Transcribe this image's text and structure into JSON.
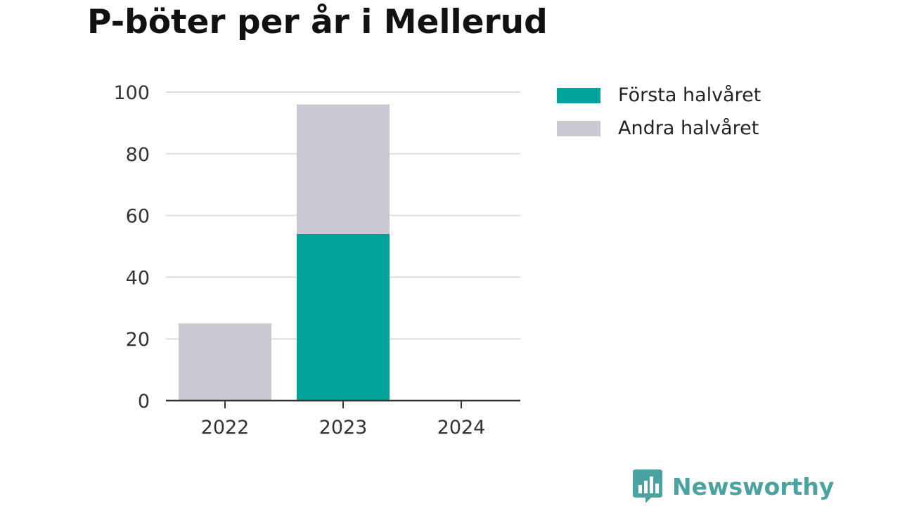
{
  "title": "P-böter per år i Mellerud",
  "legend": [
    {
      "label": "Första halvåret",
      "color": "#00a39a"
    },
    {
      "label": "Andra halvåret",
      "color": "#c8c7d2"
    }
  ],
  "logo": {
    "text": "Newsworthy",
    "icon": "newsworthy-logo-icon",
    "color": "#4aa3a0"
  },
  "chart_data": {
    "type": "bar",
    "stacked": true,
    "categories": [
      "2022",
      "2023",
      "2024"
    ],
    "series": [
      {
        "name": "Första halvåret",
        "color": "#00a39a",
        "values": [
          0,
          54,
          0
        ]
      },
      {
        "name": "Andra halvåret",
        "color": "#c8c7d2",
        "values": [
          25,
          42,
          0
        ]
      }
    ],
    "ylim": [
      0,
      100
    ],
    "yticks": [
      0,
      20,
      40,
      60,
      80,
      100
    ],
    "grid": true,
    "legend_position": "right",
    "xlabel": "",
    "ylabel": ""
  }
}
